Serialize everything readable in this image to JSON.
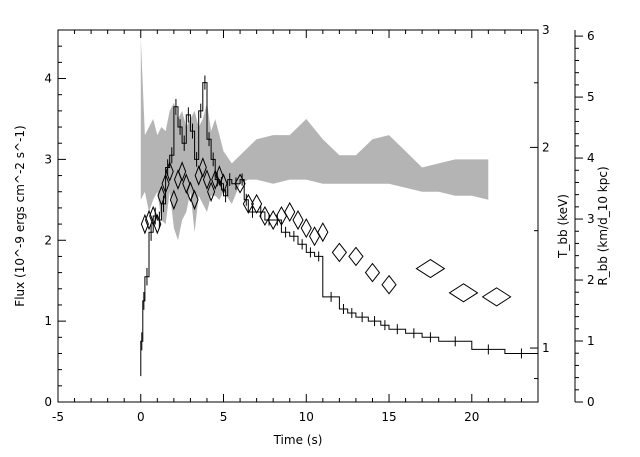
{
  "chart_data": {
    "type": "line",
    "xlabel": "Time (s)",
    "ylabel_left": "Flux (10^-9 ergs cm^-2 s^-1)",
    "ylabel_right_t": "T_bb (keV)",
    "ylabel_right_r": "R_bb (km/d_10 kpc)",
    "xlim": [
      -5,
      24
    ],
    "ylim_flux": [
      0,
      4.6
    ],
    "ylim_t_log": [
      0.83,
      3.0
    ],
    "ylim_r": [
      0,
      6.1
    ],
    "x_ticks": [
      -5,
      0,
      5,
      10,
      15,
      20
    ],
    "flux_ticks": [
      0,
      1,
      2,
      3,
      4
    ],
    "t_ticks": [
      1,
      2,
      3
    ],
    "r_ticks": [
      0,
      1,
      2,
      3,
      4,
      5,
      6
    ],
    "series": [
      {
        "style": "step-histogram",
        "points": [
          [
            0.0,
            0.75
          ],
          [
            0.125,
            1.25
          ],
          [
            0.25,
            1.55
          ],
          [
            0.5,
            2.1
          ],
          [
            0.75,
            2.3
          ],
          [
            1.0,
            2.25
          ],
          [
            1.25,
            2.45
          ],
          [
            1.5,
            2.9
          ],
          [
            1.75,
            3.05
          ],
          [
            2.0,
            3.65
          ],
          [
            2.25,
            3.4
          ],
          [
            2.5,
            3.2
          ],
          [
            2.75,
            3.55
          ],
          [
            3.0,
            3.35
          ],
          [
            3.25,
            3.0
          ],
          [
            3.5,
            3.6
          ],
          [
            3.75,
            3.95
          ],
          [
            4.0,
            3.25
          ],
          [
            4.25,
            3.0
          ],
          [
            4.5,
            2.75
          ],
          [
            4.75,
            2.7
          ],
          [
            5.0,
            2.55
          ],
          [
            5.25,
            2.75
          ],
          [
            5.5,
            2.7
          ],
          [
            6.0,
            2.75
          ],
          [
            6.25,
            2.5
          ],
          [
            6.5,
            2.35
          ],
          [
            7.0,
            2.35
          ],
          [
            7.5,
            2.25
          ],
          [
            8.0,
            2.25
          ],
          [
            8.5,
            2.1
          ],
          [
            9.0,
            2.05
          ],
          [
            9.5,
            1.95
          ],
          [
            10.0,
            1.85
          ],
          [
            10.5,
            1.8
          ],
          [
            11.0,
            1.3
          ],
          [
            12.0,
            1.15
          ],
          [
            12.5,
            1.1
          ],
          [
            13.0,
            1.05
          ],
          [
            13.75,
            1.0
          ],
          [
            14.5,
            0.95
          ],
          [
            15.0,
            0.9
          ],
          [
            16.0,
            0.85
          ],
          [
            17.0,
            0.8
          ],
          [
            18.0,
            0.75
          ],
          [
            20.0,
            0.65
          ],
          [
            22.0,
            0.6
          ],
          [
            24.0,
            0.55
          ]
        ]
      },
      {
        "style": "diamond",
        "points": [
          [
            0.25,
            2.2
          ],
          [
            0.5,
            2.25
          ],
          [
            0.75,
            2.3
          ],
          [
            1.0,
            2.2
          ],
          [
            1.25,
            2.55
          ],
          [
            1.5,
            2.7
          ],
          [
            1.75,
            2.85
          ],
          [
            2.0,
            2.5
          ],
          [
            2.25,
            2.75
          ],
          [
            2.5,
            2.85
          ],
          [
            2.75,
            2.7
          ],
          [
            3.0,
            2.6
          ],
          [
            3.25,
            2.5
          ],
          [
            3.5,
            2.8
          ],
          [
            3.75,
            2.9
          ],
          [
            4.0,
            2.75
          ],
          [
            4.25,
            2.6
          ],
          [
            4.5,
            2.75
          ],
          [
            4.75,
            2.8
          ],
          [
            5.0,
            2.7
          ],
          [
            6.0,
            2.7
          ],
          [
            6.5,
            2.45
          ],
          [
            7.0,
            2.45
          ],
          [
            7.5,
            2.3
          ],
          [
            8.0,
            2.25
          ],
          [
            8.5,
            2.3
          ],
          [
            9.0,
            2.35
          ],
          [
            9.5,
            2.25
          ],
          [
            10.0,
            2.15
          ],
          [
            10.5,
            2.05
          ],
          [
            11.0,
            2.1
          ],
          [
            12.0,
            1.85
          ],
          [
            13.0,
            1.8
          ],
          [
            14.0,
            1.6
          ],
          [
            15.0,
            1.45
          ],
          [
            17.5,
            1.65
          ],
          [
            19.5,
            1.35
          ],
          [
            21.5,
            1.3
          ]
        ]
      },
      {
        "style": "band",
        "x": [
          0.0,
          0.25,
          0.5,
          0.75,
          1.0,
          1.25,
          1.5,
          1.75,
          2.0,
          2.25,
          2.5,
          2.75,
          3.0,
          3.25,
          3.5,
          3.75,
          4.0,
          4.25,
          4.5,
          4.75,
          5.0,
          5.5,
          6.0,
          6.5,
          7.0,
          8.0,
          9.0,
          10.0,
          11.0,
          12.0,
          13.0,
          14.0,
          15.0,
          16.0,
          17.0,
          18.0,
          19.0,
          20.0,
          21.0
        ],
        "upper": [
          4.5,
          3.3,
          3.4,
          3.5,
          3.3,
          3.4,
          3.35,
          3.6,
          3.7,
          3.5,
          3.6,
          3.4,
          3.5,
          3.6,
          3.4,
          3.5,
          3.7,
          3.35,
          3.5,
          3.3,
          3.1,
          2.95,
          3.05,
          3.15,
          3.25,
          3.3,
          3.3,
          3.5,
          3.25,
          3.05,
          3.05,
          3.25,
          3.3,
          3.1,
          2.9,
          2.95,
          3.0,
          3.0,
          3.0
        ],
        "lower": [
          2.5,
          2.6,
          2.35,
          2.5,
          2.6,
          2.25,
          2.2,
          2.6,
          2.15,
          2.0,
          2.25,
          2.35,
          2.6,
          2.1,
          2.55,
          2.45,
          2.35,
          2.55,
          2.55,
          2.5,
          2.6,
          2.45,
          2.7,
          2.75,
          2.75,
          2.7,
          2.75,
          2.75,
          2.7,
          2.7,
          2.7,
          2.7,
          2.7,
          2.65,
          2.6,
          2.6,
          2.55,
          2.55,
          2.5
        ]
      }
    ]
  }
}
